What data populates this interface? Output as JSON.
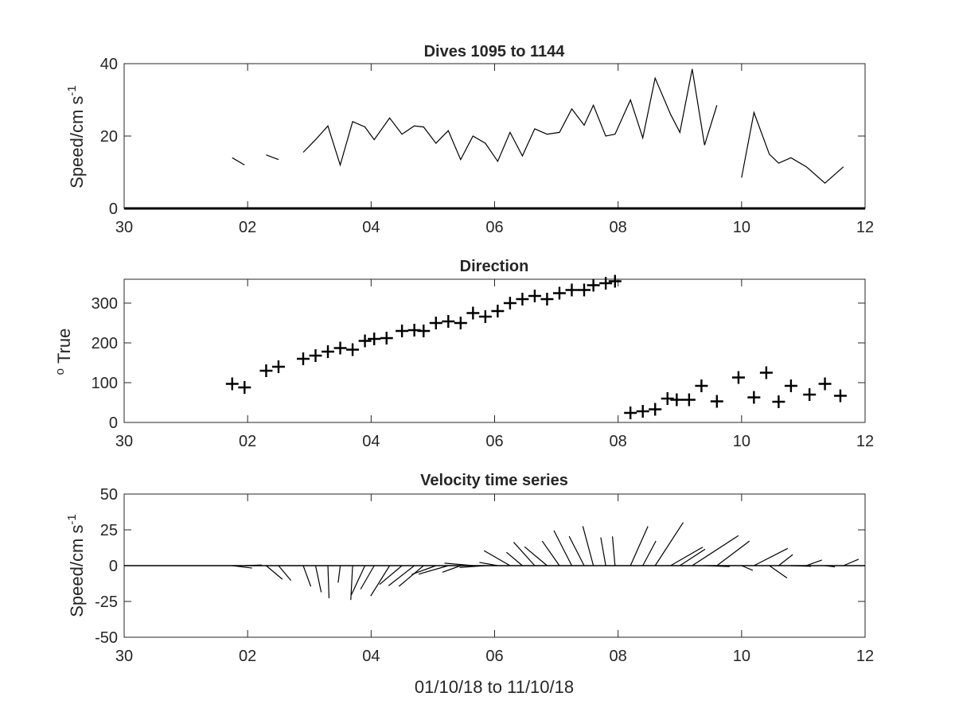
{
  "chart_data": [
    {
      "type": "line",
      "title": "Dives 1095 to 1144",
      "ylabel": "Speed/cm s",
      "ylabel_superscript": "-1",
      "xlabel": "",
      "xlim": [
        30,
        42
      ],
      "ylim": [
        0,
        40
      ],
      "x_ticks": [
        "30",
        "02",
        "04",
        "06",
        "08",
        "10",
        "12"
      ],
      "y_ticks": [
        "0",
        "20",
        "40"
      ],
      "grid": false,
      "series": [
        {
          "segments": [
            [
              [
                31.75,
                14
              ],
              [
                31.95,
                12
              ]
            ],
            [
              [
                32.3,
                14.8
              ],
              [
                32.5,
                13.5
              ]
            ],
            [
              [
                32.9,
                15.5
              ],
              [
                33.1,
                19
              ],
              [
                33.3,
                22.8
              ],
              [
                33.5,
                12
              ],
              [
                33.7,
                24
              ],
              [
                33.9,
                22.5
              ],
              [
                34.05,
                19
              ],
              [
                34.3,
                25
              ],
              [
                34.5,
                20.5
              ],
              [
                34.7,
                22.8
              ],
              [
                34.85,
                22.5
              ],
              [
                35.05,
                18
              ],
              [
                35.25,
                21.5
              ],
              [
                35.45,
                13.5
              ],
              [
                35.65,
                20
              ],
              [
                35.85,
                18
              ],
              [
                36.05,
                13
              ],
              [
                36.25,
                21
              ],
              [
                36.45,
                14.5
              ],
              [
                36.65,
                22
              ],
              [
                36.85,
                20.5
              ],
              [
                37.05,
                21
              ],
              [
                37.25,
                27.5
              ],
              [
                37.45,
                23
              ],
              [
                37.6,
                28.5
              ],
              [
                37.8,
                20
              ],
              [
                37.95,
                20.5
              ],
              [
                38.2,
                30
              ],
              [
                38.4,
                19.5
              ],
              [
                38.6,
                36
              ],
              [
                38.85,
                26
              ],
              [
                39.0,
                21
              ],
              [
                39.2,
                38.5
              ],
              [
                39.4,
                17.5
              ],
              [
                39.6,
                28.5
              ]
            ],
            [
              [
                40.0,
                8.5
              ],
              [
                40.2,
                26.5
              ],
              [
                40.45,
                15
              ],
              [
                40.6,
                12.5
              ],
              [
                40.8,
                14
              ],
              [
                41.05,
                11.5
              ],
              [
                41.35,
                7
              ],
              [
                41.65,
                11.5
              ]
            ]
          ]
        }
      ]
    },
    {
      "type": "scatter",
      "title": "Direction",
      "ylabel": "True",
      "ylabel_prefix": "o",
      "xlabel": "",
      "xlim": [
        30,
        42
      ],
      "ylim": [
        0,
        360
      ],
      "x_ticks": [
        "30",
        "02",
        "04",
        "06",
        "08",
        "10",
        "12"
      ],
      "y_ticks": [
        "0",
        "100",
        "200",
        "300"
      ],
      "y_tick_values": [
        0,
        100,
        200,
        300
      ],
      "marker": "+",
      "grid": false,
      "points": [
        [
          31.75,
          97
        ],
        [
          31.95,
          88
        ],
        [
          32.3,
          130
        ],
        [
          32.5,
          140
        ],
        [
          32.9,
          160
        ],
        [
          33.1,
          168
        ],
        [
          33.3,
          178
        ],
        [
          33.5,
          187
        ],
        [
          33.7,
          183
        ],
        [
          33.9,
          205
        ],
        [
          34.05,
          210
        ],
        [
          34.25,
          212
        ],
        [
          34.5,
          230
        ],
        [
          34.7,
          232
        ],
        [
          34.85,
          230
        ],
        [
          35.05,
          250
        ],
        [
          35.25,
          254
        ],
        [
          35.45,
          250
        ],
        [
          35.65,
          275
        ],
        [
          35.85,
          266
        ],
        [
          36.05,
          280
        ],
        [
          36.25,
          300
        ],
        [
          36.45,
          310
        ],
        [
          36.65,
          318
        ],
        [
          36.85,
          310
        ],
        [
          37.05,
          325
        ],
        [
          37.25,
          333
        ],
        [
          37.45,
          333
        ],
        [
          37.6,
          345
        ],
        [
          37.8,
          350
        ],
        [
          37.95,
          355
        ],
        [
          38.2,
          24
        ],
        [
          38.4,
          28
        ],
        [
          38.6,
          33
        ],
        [
          38.8,
          60
        ],
        [
          38.95,
          57
        ],
        [
          39.15,
          57
        ],
        [
          39.35,
          92
        ],
        [
          39.6,
          53
        ],
        [
          39.95,
          113
        ],
        [
          40.2,
          63
        ],
        [
          40.4,
          125
        ],
        [
          40.6,
          52
        ],
        [
          40.8,
          92
        ],
        [
          41.1,
          70
        ],
        [
          41.35,
          97
        ],
        [
          41.6,
          67
        ]
      ]
    },
    {
      "type": "stick",
      "title": "Velocity time series",
      "ylabel": "Speed/cm s",
      "ylabel_superscript": "-1",
      "xlabel": "01/10/18 to 11/10/18",
      "xlim": [
        30,
        42
      ],
      "ylim": [
        -50,
        50
      ],
      "x_ticks": [
        "30",
        "02",
        "04",
        "06",
        "08",
        "10",
        "12"
      ],
      "y_ticks": [
        "-50",
        "-25",
        "0",
        "25",
        "50"
      ],
      "y_tick_values": [
        -50,
        -25,
        0,
        25,
        50
      ],
      "grid": false,
      "note_units": "each stick: origin time, speed in cm/s, direction in degrees true (0 = up)",
      "sticks": [
        [
          31.75,
          14,
          97
        ],
        [
          31.95,
          12,
          88
        ],
        [
          32.3,
          14.8,
          130
        ],
        [
          32.5,
          13.5,
          140
        ],
        [
          32.9,
          15.5,
          160
        ],
        [
          33.1,
          19,
          168
        ],
        [
          33.3,
          22.8,
          178
        ],
        [
          33.5,
          12,
          187
        ],
        [
          33.7,
          24,
          183
        ],
        [
          33.9,
          22.5,
          205
        ],
        [
          34.05,
          19,
          210
        ],
        [
          34.3,
          25,
          212
        ],
        [
          34.5,
          20.5,
          230
        ],
        [
          34.7,
          22.8,
          232
        ],
        [
          34.85,
          22.5,
          230
        ],
        [
          35.05,
          18,
          250
        ],
        [
          35.25,
          21.5,
          254
        ],
        [
          35.45,
          13.5,
          250
        ],
        [
          35.65,
          20,
          275
        ],
        [
          35.85,
          18,
          266
        ],
        [
          36.05,
          13,
          280
        ],
        [
          36.25,
          21,
          300
        ],
        [
          36.45,
          14.5,
          310
        ],
        [
          36.65,
          22,
          318
        ],
        [
          36.85,
          20.5,
          310
        ],
        [
          37.05,
          21,
          325
        ],
        [
          37.25,
          27.5,
          333
        ],
        [
          37.45,
          23,
          333
        ],
        [
          37.6,
          28.5,
          345
        ],
        [
          37.8,
          20,
          350
        ],
        [
          37.95,
          20.5,
          355
        ],
        [
          38.2,
          30,
          24
        ],
        [
          38.4,
          19.5,
          28
        ],
        [
          38.6,
          36,
          33
        ],
        [
          38.85,
          26,
          60
        ],
        [
          39.0,
          21,
          57
        ],
        [
          39.2,
          38.5,
          57
        ],
        [
          39.4,
          17.5,
          92
        ],
        [
          39.6,
          28.5,
          53
        ],
        [
          40.0,
          8.5,
          113
        ],
        [
          40.2,
          26.5,
          63
        ],
        [
          40.45,
          15,
          125
        ],
        [
          40.6,
          12.5,
          52
        ],
        [
          40.8,
          14,
          92
        ],
        [
          41.05,
          11.5,
          70
        ],
        [
          41.35,
          7,
          97
        ],
        [
          41.65,
          11.5,
          67
        ]
      ]
    }
  ]
}
